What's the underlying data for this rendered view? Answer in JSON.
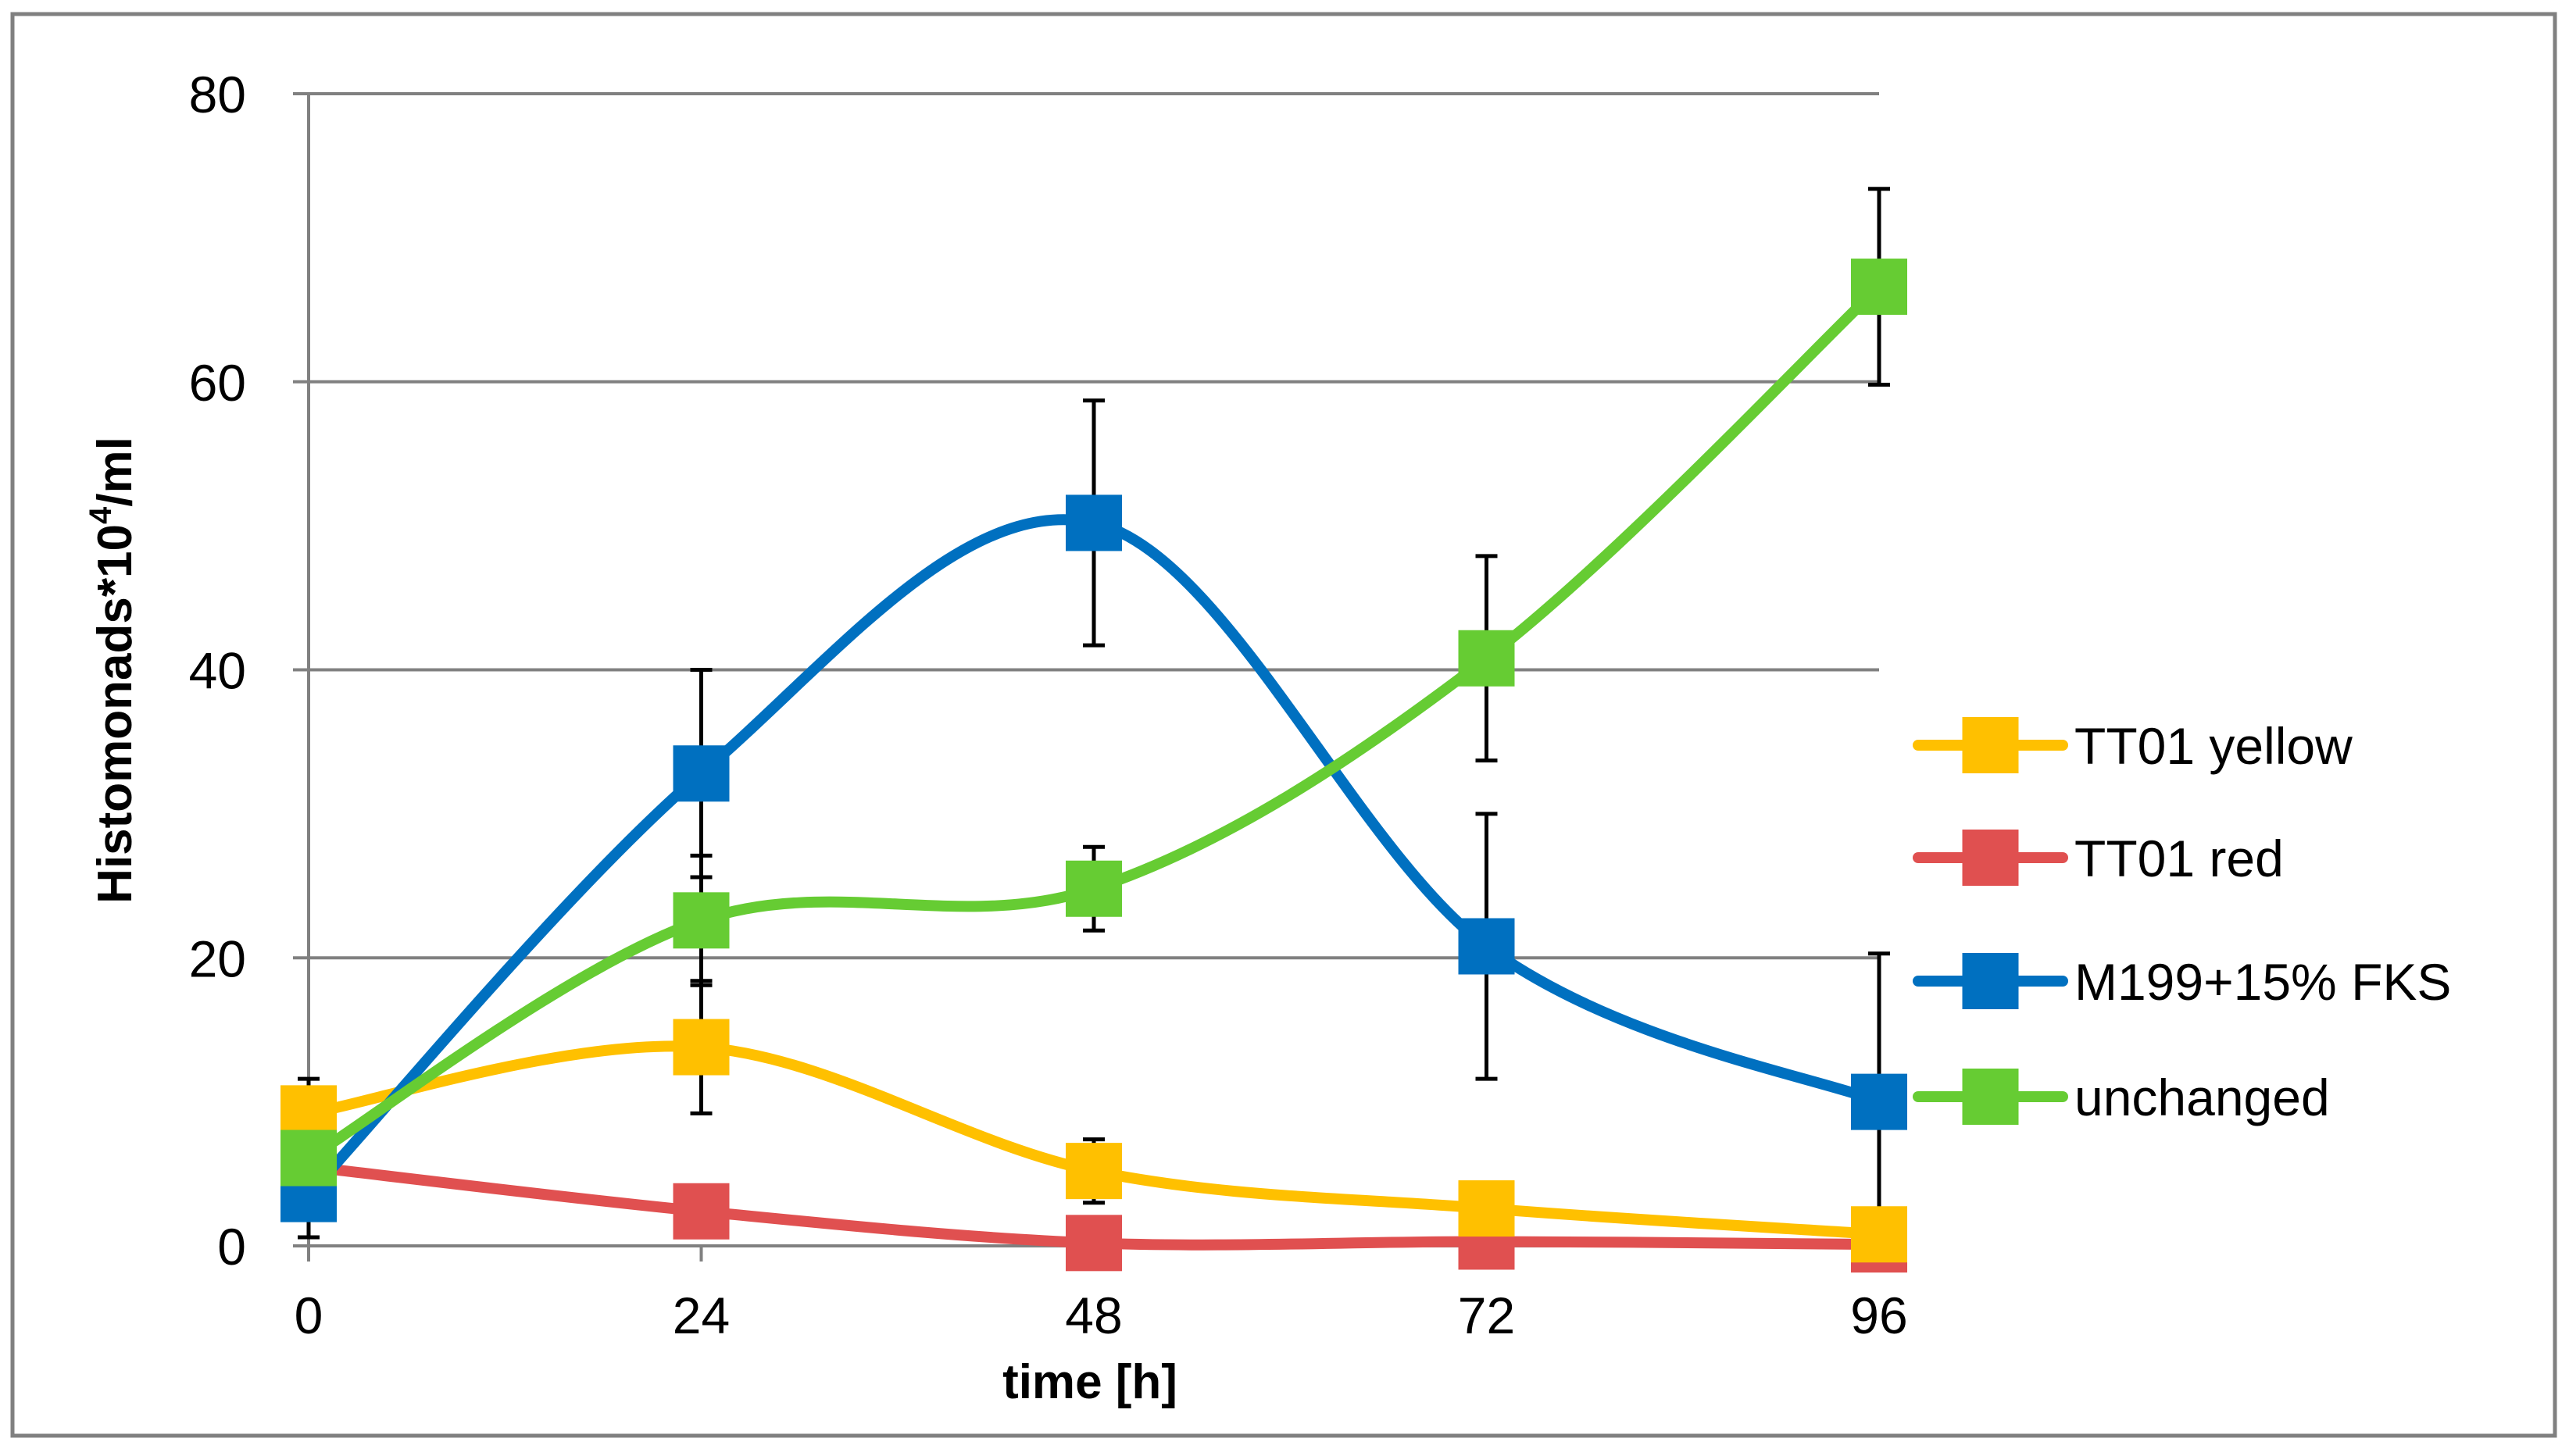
{
  "chart_data": {
    "type": "line",
    "title": "",
    "xlabel": "time [h]",
    "ylabel_main": "Histomonads*10",
    "ylabel_sup": "4",
    "ylabel_tail": "/ml",
    "x": [
      0,
      24,
      48,
      72,
      96
    ],
    "x_tick_labels": [
      "0",
      "24",
      "48",
      "72",
      "96"
    ],
    "ylim": [
      0,
      80
    ],
    "y_ticks": [
      0,
      20,
      40,
      60,
      80
    ],
    "y_tick_labels": [
      "0",
      "20",
      "40",
      "60",
      "80"
    ],
    "grid": true,
    "legend_position": "right",
    "smooth": true,
    "series": [
      {
        "name": "TT01 yellow",
        "color": "#FFC000",
        "values": [
          9.2,
          13.8,
          5.2,
          2.6,
          0.8
        ],
        "errors": [
          null,
          4.6,
          2.2,
          null,
          null
        ]
      },
      {
        "name": "TT01 red",
        "color": "#E05050",
        "values": [
          5.5,
          2.4,
          0.2,
          0.3,
          0.1
        ],
        "errors": [
          null,
          null,
          null,
          null,
          null
        ]
      },
      {
        "name": "M199+15% FKS",
        "color": "#0070C0",
        "values": [
          3.6,
          32.8,
          50.2,
          20.8,
          10.0
        ],
        "errors": [
          null,
          7.2,
          8.5,
          9.2,
          10.3
        ]
      },
      {
        "name": "unchanged",
        "color": "#66CC33",
        "values": [
          6.1,
          22.6,
          24.8,
          40.8,
          66.6
        ],
        "errors": [
          5.5,
          4.5,
          2.9,
          7.1,
          6.8
        ]
      }
    ]
  }
}
